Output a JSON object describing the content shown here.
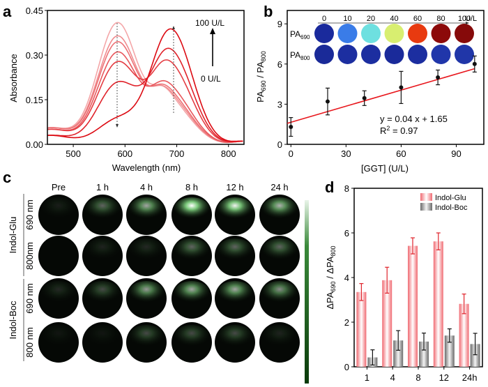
{
  "chart_data": [
    {
      "panel": "a",
      "type": "line",
      "xlabel": "Wavelength (nm)",
      "ylabel": "Absorbance",
      "xlim": [
        450,
        830
      ],
      "ylim": [
        0,
        0.45
      ],
      "xticks": [
        500,
        600,
        700,
        800
      ],
      "yticks": [
        "0.00",
        "0.15",
        "0.30",
        "0.45"
      ],
      "annotations": {
        "top": "100 U/L",
        "bottom": "0 U/L"
      },
      "series_colors": [
        "#f4a6a8",
        "#f08c8f",
        "#ec7276",
        "#e8575c",
        "#e43c42",
        "#e0222a",
        "#dc0a12"
      ],
      "series": [
        {
          "name": "0 U/L",
          "peak1": 0.405,
          "peak2": 0.13,
          "base": 0.055
        },
        {
          "name": "10 U/L",
          "peak1": 0.36,
          "peak2": 0.14,
          "base": 0.055
        },
        {
          "name": "20 U/L",
          "peak1": 0.34,
          "peak2": 0.15,
          "base": 0.055
        },
        {
          "name": "40 U/L",
          "peak1": 0.305,
          "peak2": 0.17,
          "base": 0.05
        },
        {
          "name": "60 U/L",
          "peak1": 0.27,
          "peak2": 0.25,
          "base": 0.05
        },
        {
          "name": "80 U/L",
          "peak1": 0.2,
          "peak2": 0.3,
          "base": 0.03
        },
        {
          "name": "100 U/L",
          "peak1": 0.08,
          "peak2": 0.38,
          "base": 0.03
        }
      ]
    },
    {
      "panel": "b",
      "type": "scatter",
      "xlabel": "[GGT] (U/L)",
      "ylabel": "PA690 / PA800",
      "xlim": [
        -2,
        105
      ],
      "ylim": [
        0,
        10
      ],
      "xticks": [
        0,
        30,
        60,
        90
      ],
      "yticks": [
        0,
        3,
        6,
        9
      ],
      "x": [
        0,
        20,
        40,
        60,
        80,
        100
      ],
      "y": [
        1.3,
        3.2,
        3.45,
        4.25,
        5.0,
        6.0
      ],
      "err": [
        0.7,
        1.0,
        0.55,
        1.2,
        0.55,
        0.6
      ],
      "fit": {
        "slope": 0.04,
        "intercept": 1.65,
        "equation": "y = 0.04 x + 1.65",
        "r2_label": "R",
        "r2_value": " = 0.97"
      },
      "inset": {
        "concentrations": [
          "0",
          "10",
          "20",
          "40",
          "60",
          "80",
          "100"
        ],
        "unit": "U/L",
        "row_labels": [
          "PA",
          "PA"
        ],
        "row_subs": [
          "690",
          "800"
        ],
        "row690_colors": [
          "#1a2a9c",
          "#3a7ce8",
          "#6ee0e0",
          "#d8ee70",
          "#e83a10",
          "#8c0a0a",
          "#860a0a"
        ],
        "row800_colors": [
          "#1a2a98",
          "#1c2ea0",
          "#1c2ea0",
          "#1a2a9a",
          "#1c2ea0",
          "#2036aa",
          "#2036a8"
        ]
      }
    },
    {
      "panel": "d",
      "type": "bar",
      "categories": [
        "1",
        "4",
        "8",
        "12",
        "24h"
      ],
      "ylabel": "ΔPA690 / ΔPA800",
      "ylim": [
        0,
        8
      ],
      "yticks": [
        0,
        2,
        4,
        6,
        8
      ],
      "legend": "top-right",
      "series": [
        {
          "name": "Indol-Glu",
          "values": [
            3.35,
            3.88,
            5.42,
            5.62,
            2.82
          ],
          "err": [
            0.38,
            0.58,
            0.36,
            0.38,
            0.44
          ],
          "color": "#f07a80"
        },
        {
          "name": "Indol-Boc",
          "values": [
            0.42,
            1.18,
            1.13,
            1.4,
            1.02
          ],
          "err": [
            0.34,
            0.44,
            0.38,
            0.3,
            0.48
          ],
          "color": "#8a8a8a"
        }
      ]
    }
  ],
  "panels": {
    "a": "a",
    "b": "b",
    "c": "c",
    "d": "d"
  },
  "panel_c": {
    "columns": [
      "Pre",
      "1 h",
      "4 h",
      "8 h",
      "12 h",
      "24 h"
    ],
    "groups": [
      {
        "name": "Indol-Glu",
        "rows": [
          "690 nm",
          "800nm"
        ]
      },
      {
        "name": "Indol-Boc",
        "rows": [
          "690 nm",
          "800 nm"
        ]
      }
    ],
    "intensity": [
      [
        0.08,
        0.35,
        0.6,
        0.95,
        0.9,
        0.65
      ],
      [
        0.0,
        0.1,
        0.12,
        0.35,
        0.35,
        0.35
      ],
      [
        0.12,
        0.25,
        0.55,
        0.6,
        0.6,
        0.5
      ],
      [
        0.05,
        0.05,
        0.25,
        0.25,
        0.25,
        0.1
      ]
    ],
    "colorbar": {
      "top": "#e8f4e8",
      "bottom": "#0a3a0a"
    }
  }
}
